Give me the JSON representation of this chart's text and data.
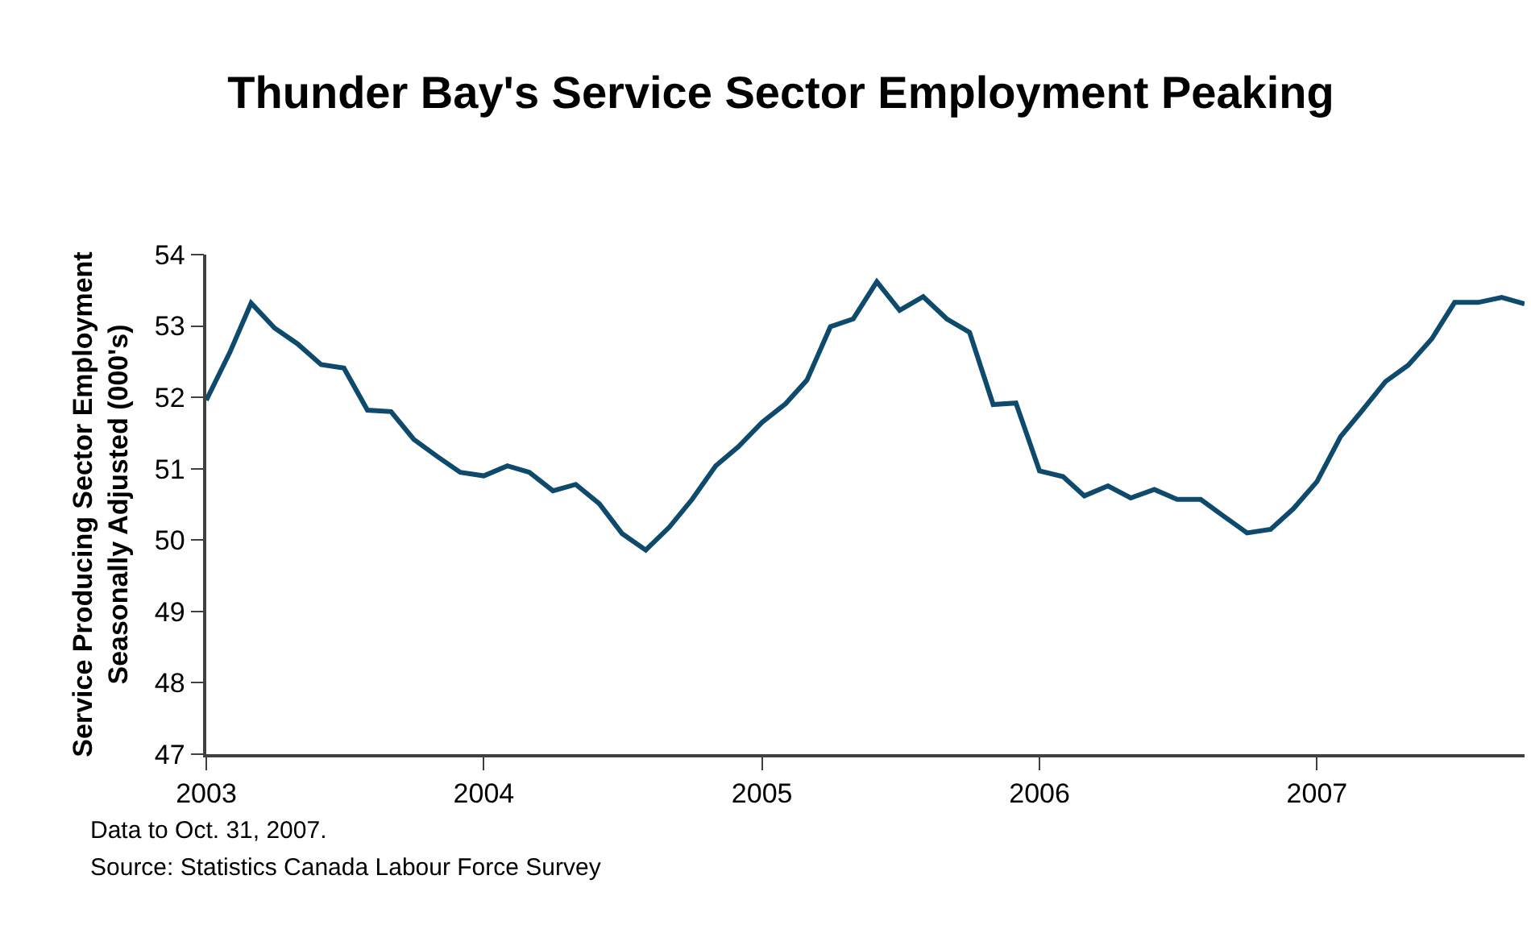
{
  "chart_data": {
    "type": "line",
    "title": "Thunder Bay's Service Sector Employment Peaking",
    "ylabel": "Service Producing Sector Employment\nSeasonally Adjusted (000's)",
    "x": [
      "2003-01",
      "2003-02",
      "2003-03",
      "2003-04",
      "2003-05",
      "2003-06",
      "2003-07",
      "2003-08",
      "2003-09",
      "2003-10",
      "2003-11",
      "2003-12",
      "2004-01",
      "2004-02",
      "2004-03",
      "2004-04",
      "2004-05",
      "2004-06",
      "2004-07",
      "2004-08",
      "2004-09",
      "2004-10",
      "2004-11",
      "2004-12",
      "2005-01",
      "2005-02",
      "2005-03",
      "2005-04",
      "2005-05",
      "2005-06",
      "2005-07",
      "2005-08",
      "2005-09",
      "2005-10",
      "2005-11",
      "2005-12",
      "2006-01",
      "2006-02",
      "2006-03",
      "2006-04",
      "2006-05",
      "2006-06",
      "2006-07",
      "2006-08",
      "2006-09",
      "2006-10",
      "2006-11",
      "2006-12",
      "2007-01",
      "2007-02",
      "2007-03",
      "2007-04",
      "2007-05",
      "2007-06",
      "2007-07",
      "2007-08",
      "2007-09",
      "2007-10"
    ],
    "series": [
      {
        "color": "#0d4a6b",
        "values": [
          51.96,
          52.63,
          53.32,
          52.97,
          52.75,
          52.46,
          52.41,
          51.82,
          51.8,
          51.41,
          51.17,
          50.95,
          50.9,
          51.04,
          50.95,
          50.69,
          50.78,
          50.51,
          50.09,
          49.86,
          50.18,
          50.57,
          51.04,
          51.31,
          51.65,
          51.91,
          52.24,
          52.99,
          53.1,
          53.62,
          53.22,
          53.41,
          53.1,
          52.91,
          51.9,
          51.92,
          50.97,
          50.89,
          50.62,
          50.76,
          50.59,
          50.71,
          50.57,
          50.57,
          50.33,
          50.1,
          50.15,
          50.44,
          50.82,
          51.45,
          51.81,
          52.22,
          52.45,
          52.82,
          53.33,
          53.33,
          53.4,
          53.31
        ]
      }
    ],
    "xlim": [
      "2003-01",
      "2007-10"
    ],
    "xticks": [
      {
        "value": "2003-01",
        "label": "2003"
      },
      {
        "value": "2004-01",
        "label": "2004"
      },
      {
        "value": "2005-01",
        "label": "2005"
      },
      {
        "value": "2006-01",
        "label": "2006"
      },
      {
        "value": "2007-01",
        "label": "2007"
      }
    ],
    "ylim": [
      47,
      54
    ],
    "yticks": [
      47,
      48,
      49,
      50,
      51,
      52,
      53,
      54
    ],
    "marker": "none",
    "line_style": "solid",
    "annotations": [
      "Data to Oct. 31, 2007.",
      "Source: Statistics Canada Labour Force Survey"
    ]
  }
}
